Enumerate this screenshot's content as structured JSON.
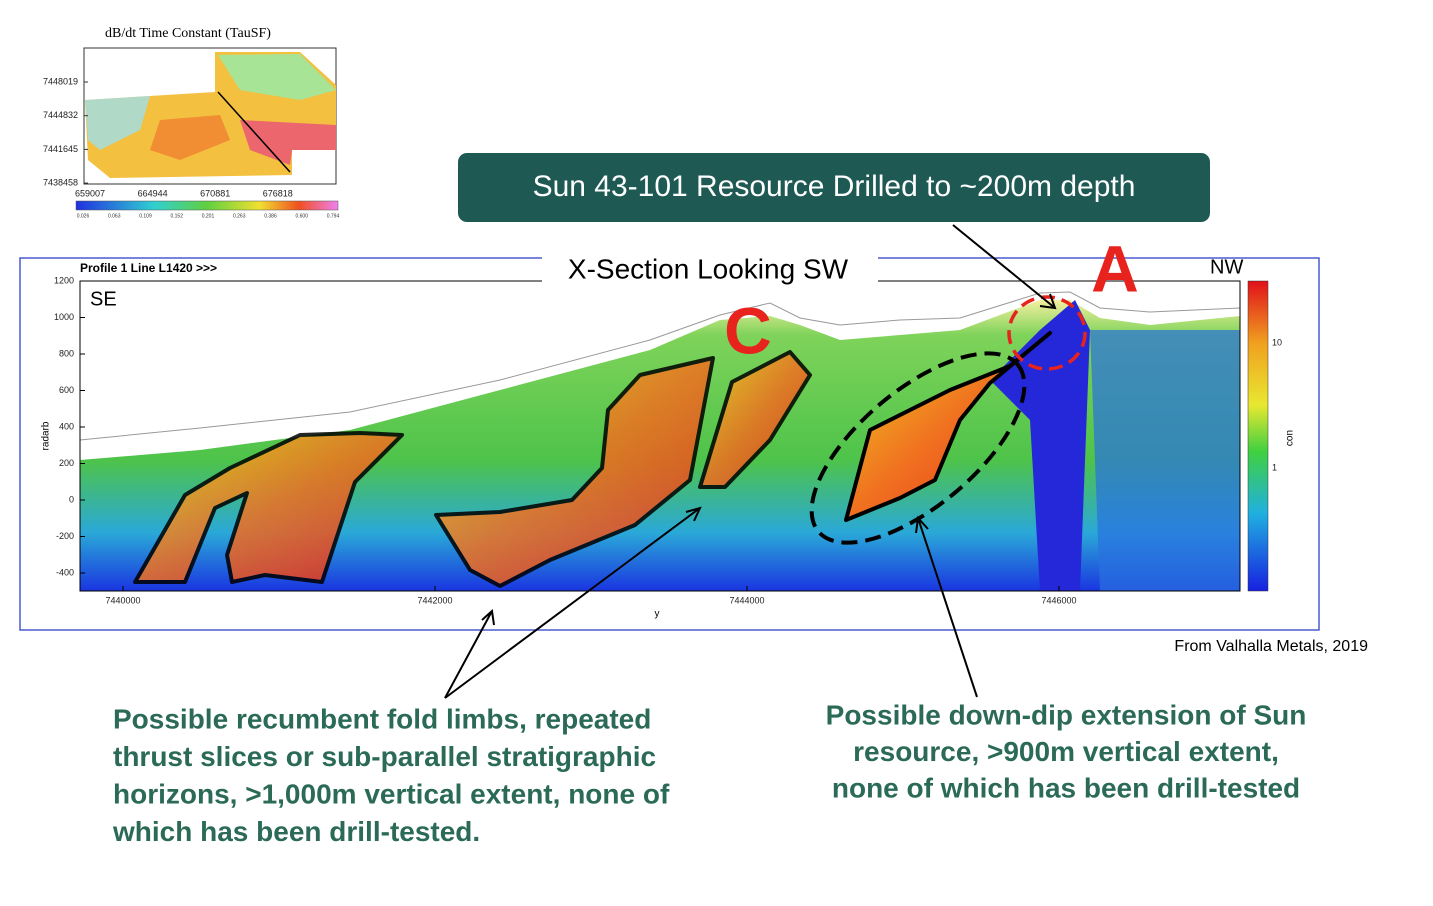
{
  "inset": {
    "title": "dB/dt Time Constant (TauSF)",
    "yticks": [
      7448019,
      7444832,
      7441645,
      7438458
    ],
    "xticks": [
      659007,
      664944,
      670881,
      676818
    ],
    "scale": [
      "0.026",
      "0.063",
      "0.109",
      "0.152",
      "0.201",
      "0.263",
      "0.386",
      "0.600",
      "0.794"
    ]
  },
  "banner": "Sun 43-101 Resource Drilled to ~200m depth",
  "section": {
    "title": "X-Section Looking SW",
    "profile": "Profile 1   Line L1420 >>>",
    "left_end": "SE",
    "right_end": "NW",
    "marker_a": "A",
    "marker_c": "C",
    "ylabel": "radarb",
    "yticks": [
      1200,
      1000,
      800,
      600,
      400,
      200,
      0,
      -200,
      -400
    ],
    "xlabel": "y",
    "xticks": [
      7440000,
      7442000,
      7444000,
      7446000
    ],
    "colorbar_label": "con",
    "colorbar_ticks": [
      10,
      1
    ]
  },
  "source": "From Valhalla Metals, 2019",
  "notes": [
    {
      "lines": [
        "Possible recumbent fold limbs, repeated",
        "thrust slices or sub-parallel stratigraphic",
        "horizons, >1,000m vertical extent, none of",
        "which has been drill-tested."
      ]
    },
    {
      "lines": [
        "Possible  down-dip extension of  Sun",
        "resource, >900m vertical extent,",
        "none of which has been drill-tested"
      ]
    }
  ]
}
